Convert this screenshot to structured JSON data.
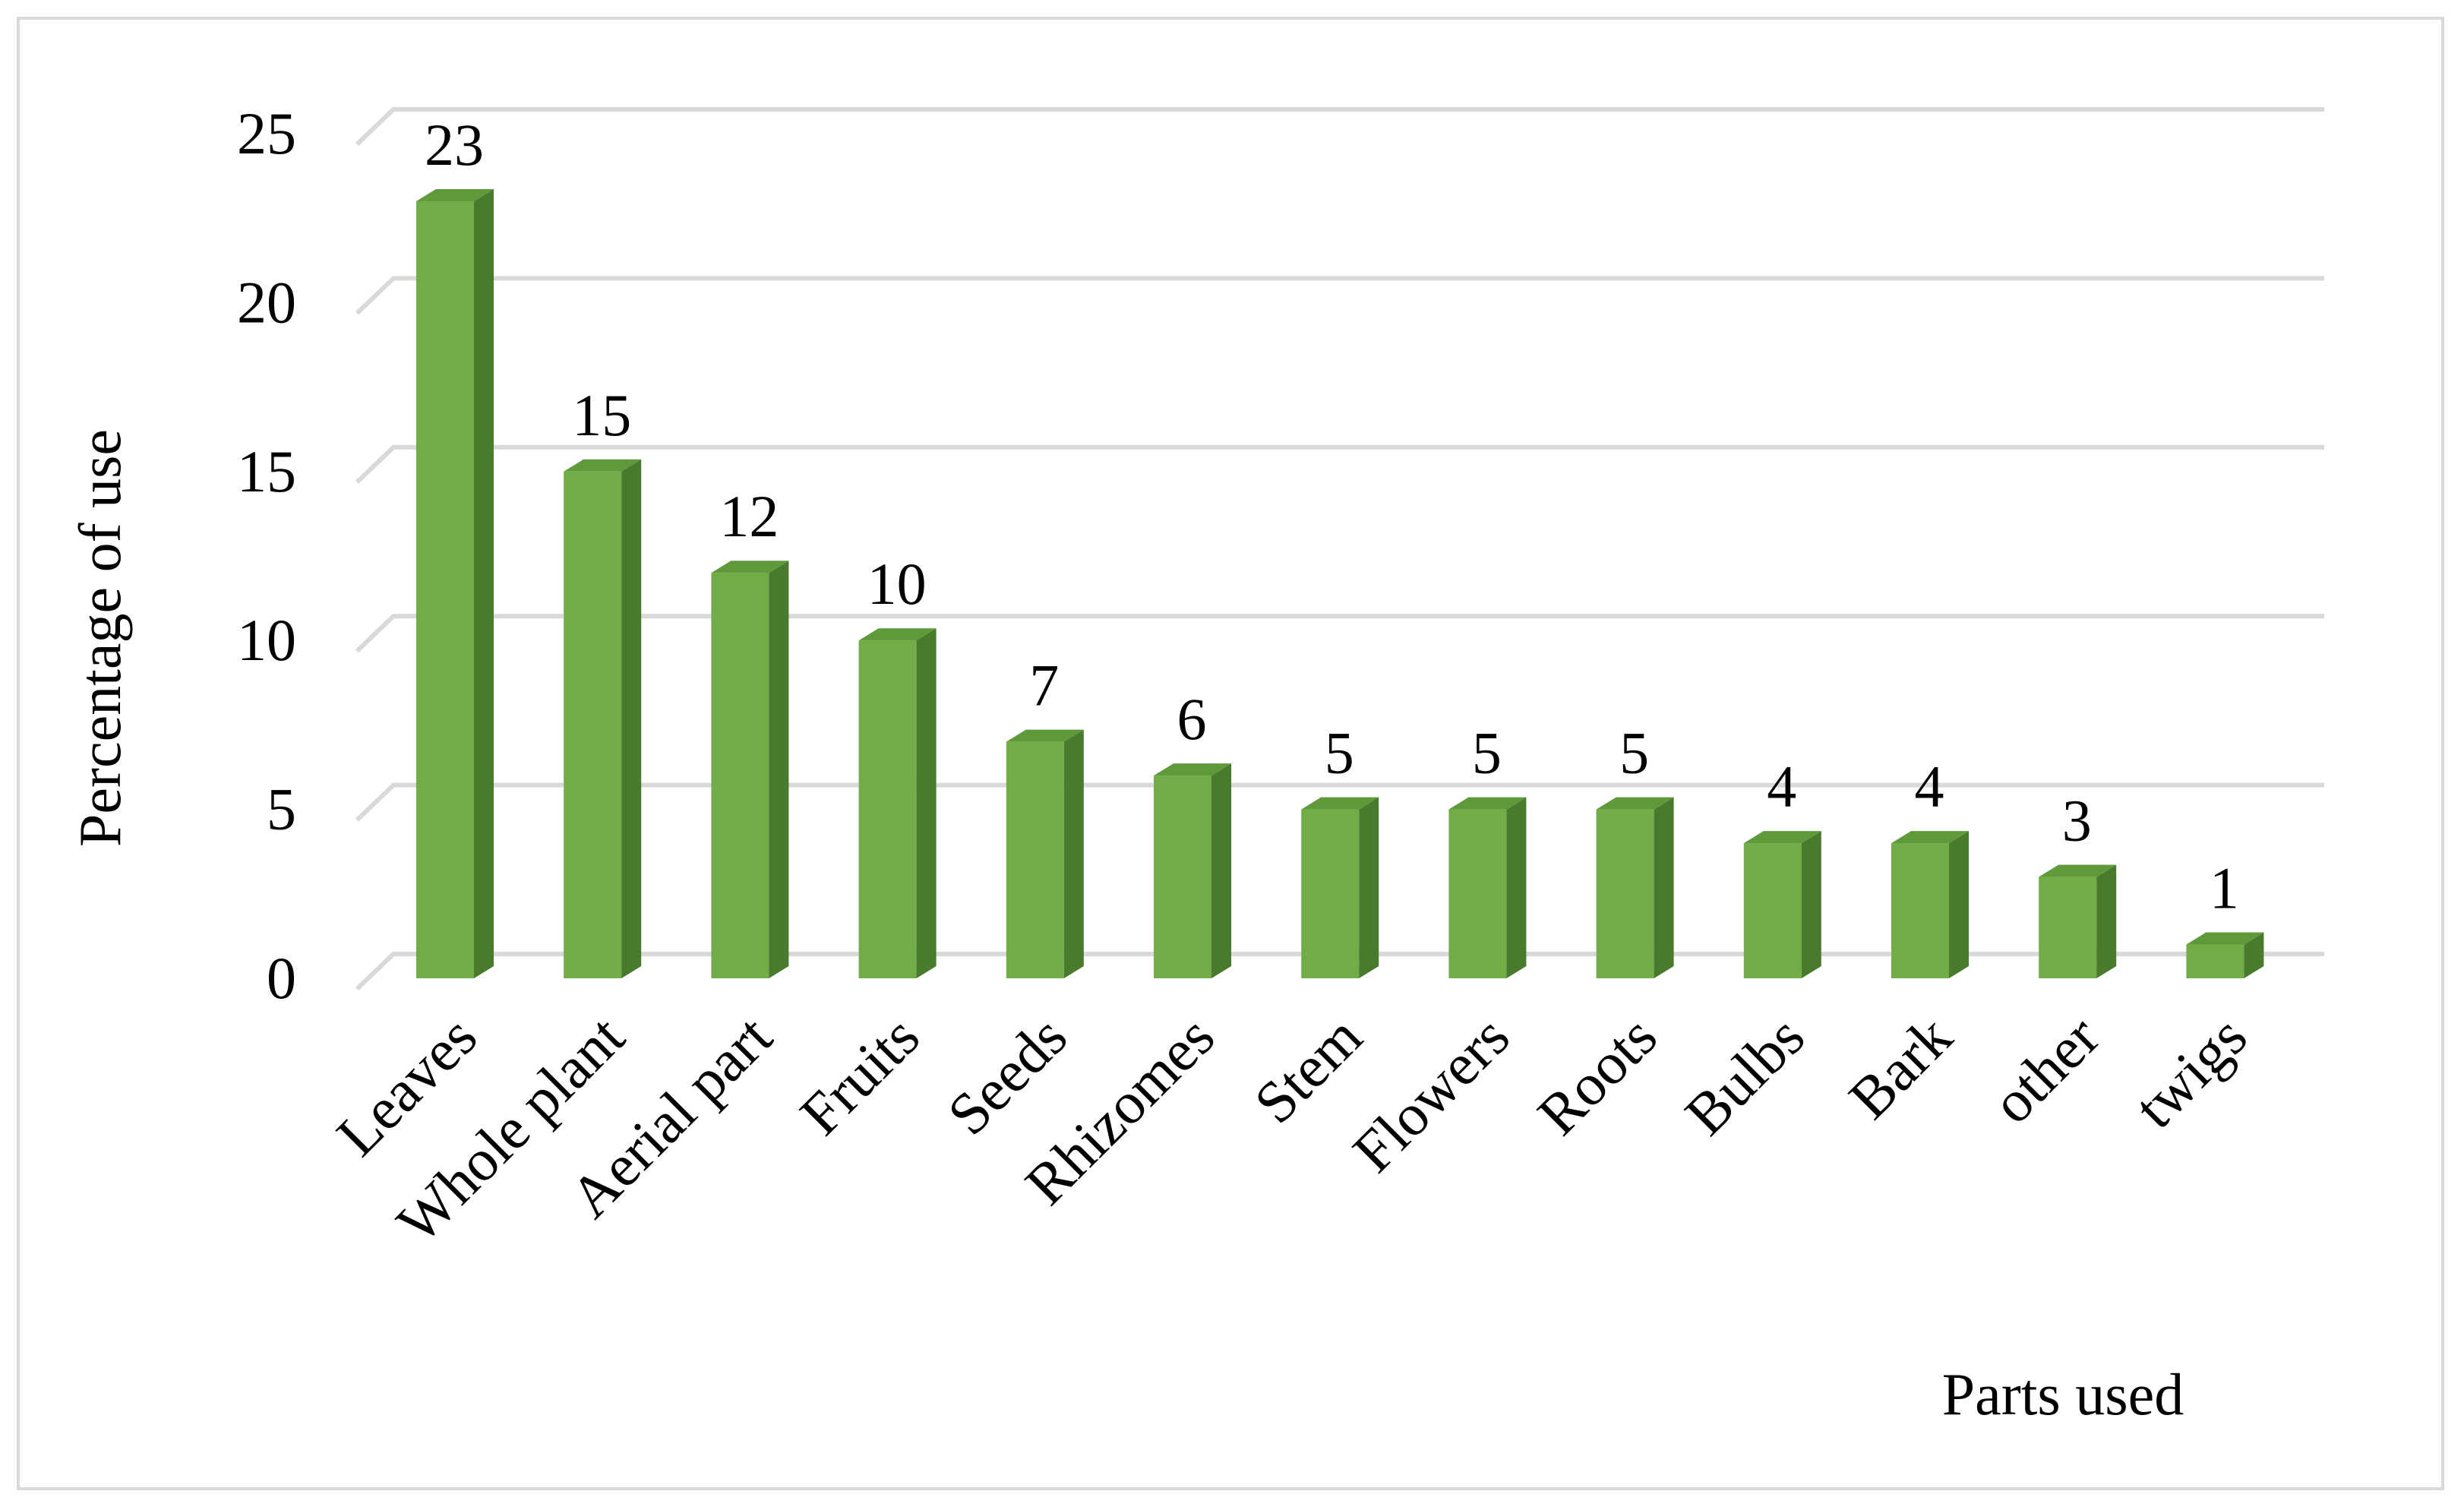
{
  "chart_data": {
    "type": "bar",
    "style": "3d-column",
    "categories": [
      "Leaves",
      "Whole plant",
      "Aerial part",
      "Fruits",
      "Seeds",
      "Rhizomes",
      "Stem",
      "Flowers",
      "Roots",
      "Bulbs",
      "Bark",
      "other",
      "twigs"
    ],
    "values": [
      23,
      15,
      12,
      10,
      7,
      6,
      5,
      5,
      5,
      4,
      4,
      3,
      1
    ],
    "data_labels": [
      "23",
      "15",
      "12",
      "10",
      "7",
      "6",
      "5",
      "5",
      "5",
      "4",
      "4",
      "3",
      "1"
    ],
    "title": "",
    "xlabel": "Parts used",
    "ylabel": "Percentage of use",
    "ylim": [
      0,
      25
    ],
    "yticks": [
      0,
      5,
      10,
      15,
      20,
      25
    ],
    "ytick_labels": [
      "0",
      "5",
      "10",
      "15",
      "20",
      "25"
    ],
    "grid": true,
    "legend": "none",
    "colors": {
      "bar_front": "#70ad47",
      "bar_side": "#4a7a2e",
      "bar_top": "#5e9a3a",
      "grid": "#d9d9d9",
      "frame": "#d9d9d9"
    }
  }
}
